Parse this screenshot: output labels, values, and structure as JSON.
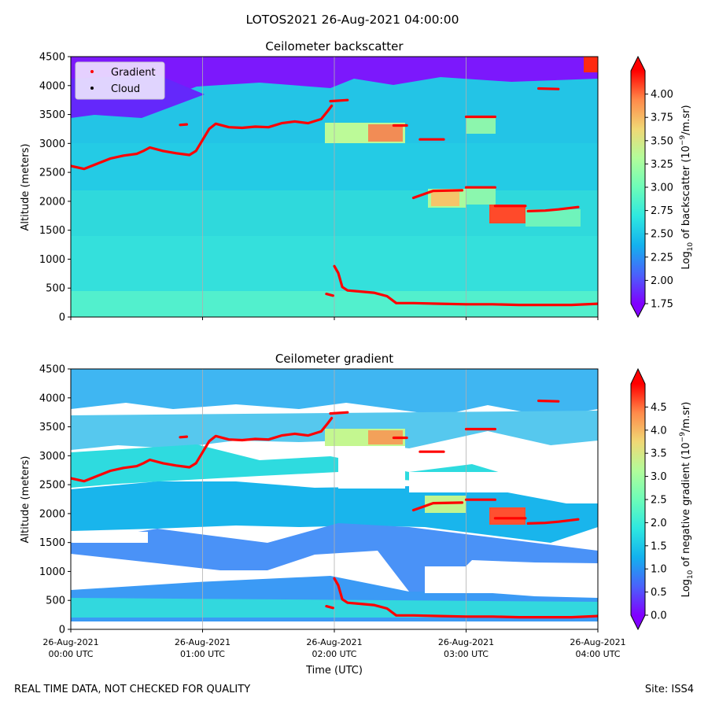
{
  "suptitle": "LOTOS2021 26-Aug-2021 04:00:00",
  "footer_left": "REAL TIME DATA, NOT CHECKED FOR QUALITY",
  "footer_right": "Site: ISS4",
  "xlabel": "Time (UTC)",
  "colormap": [
    "#8000ff",
    "#4a62fb",
    "#13b1ee",
    "#2ee8e0",
    "#6dfcb8",
    "#b2fc9a",
    "#f0d875",
    "#ff8a4a",
    "#ff0000"
  ],
  "chart_data": [
    {
      "type": "heatmap",
      "title": "Ceilometer backscatter",
      "ylabel": "Altitude (meters)",
      "ylim": [
        0,
        4500
      ],
      "yticks": [
        "0",
        "500",
        "1000",
        "1500",
        "2000",
        "2500",
        "3000",
        "3500",
        "4000",
        "4500"
      ],
      "xticks_shown": false,
      "grid": "vertical",
      "colorbar": {
        "label": "Log10 of backscatter (10^-9/m.sr)",
        "range": [
          1.75,
          4.25
        ],
        "ticks": [
          "1.75",
          "2.00",
          "2.25",
          "2.50",
          "2.75",
          "3.00",
          "3.25",
          "3.50",
          "3.75",
          "4.00"
        ]
      },
      "legend": {
        "placement": "upper-left",
        "entries": [
          {
            "label": "Gradient",
            "color": "#ff0000"
          },
          {
            "label": "Cloud",
            "color": "#000000"
          }
        ]
      }
    },
    {
      "type": "heatmap",
      "title": "Ceilometer gradient",
      "ylabel": "Altitude (meters)",
      "ylim": [
        0,
        4500
      ],
      "yticks": [
        "0",
        "500",
        "1000",
        "1500",
        "2000",
        "2500",
        "3000",
        "3500",
        "4000",
        "4500"
      ],
      "xticks": [
        {
          "date": "26-Aug-2021",
          "time": "00:00 UTC"
        },
        {
          "date": "26-Aug-2021",
          "time": "01:00 UTC"
        },
        {
          "date": "26-Aug-2021",
          "time": "02:00 UTC"
        },
        {
          "date": "26-Aug-2021",
          "time": "03:00 UTC"
        },
        {
          "date": "26-Aug-2021",
          "time": "04:00 UTC"
        }
      ],
      "grid": "vertical",
      "colorbar": {
        "label": "Log10 of negative gradient (10^-9/m.sr)",
        "range": [
          0.0,
          5.0
        ],
        "ticks": [
          "0.0",
          "0.5",
          "1.0",
          "1.5",
          "2.0",
          "2.5",
          "3.0",
          "3.5",
          "4.0",
          "4.5"
        ]
      }
    }
  ],
  "gradient_series": {
    "name": "Gradient",
    "x_unit": "hours since 00:00 UTC",
    "y_unit": "meters",
    "segments": [
      [
        [
          0.0,
          2610
        ],
        [
          0.1,
          2560
        ],
        [
          0.2,
          2650
        ],
        [
          0.3,
          2740
        ],
        [
          0.4,
          2790
        ],
        [
          0.5,
          2820
        ],
        [
          0.55,
          2870
        ],
        [
          0.6,
          2930
        ],
        [
          0.7,
          2870
        ],
        [
          0.8,
          2830
        ],
        [
          0.9,
          2800
        ],
        [
          0.95,
          2870
        ],
        [
          1.0,
          3060
        ],
        [
          1.05,
          3250
        ],
        [
          1.1,
          3340
        ],
        [
          1.2,
          3280
        ],
        [
          1.3,
          3270
        ],
        [
          1.4,
          3290
        ],
        [
          1.5,
          3280
        ],
        [
          1.6,
          3350
        ],
        [
          1.7,
          3380
        ],
        [
          1.8,
          3350
        ],
        [
          1.9,
          3420
        ],
        [
          1.95,
          3560
        ],
        [
          1.98,
          3650
        ]
      ],
      [
        [
          0.83,
          3320
        ],
        [
          0.88,
          3330
        ]
      ],
      [
        [
          1.97,
          3730
        ],
        [
          2.1,
          3750
        ]
      ],
      [
        [
          2.0,
          880
        ],
        [
          2.03,
          760
        ],
        [
          2.06,
          520
        ],
        [
          2.1,
          460
        ],
        [
          2.2,
          440
        ],
        [
          2.3,
          420
        ],
        [
          2.4,
          360
        ],
        [
          2.47,
          240
        ],
        [
          2.6,
          240
        ],
        [
          2.8,
          230
        ],
        [
          3.0,
          220
        ],
        [
          3.2,
          220
        ],
        [
          3.4,
          210
        ],
        [
          3.6,
          210
        ],
        [
          3.8,
          210
        ],
        [
          4.0,
          230
        ]
      ],
      [
        [
          1.94,
          400
        ],
        [
          1.99,
          370
        ]
      ],
      [
        [
          2.45,
          3310
        ],
        [
          2.55,
          3310
        ]
      ],
      [
        [
          2.65,
          3070
        ],
        [
          2.83,
          3070
        ]
      ],
      [
        [
          2.6,
          2060
        ],
        [
          2.75,
          2180
        ],
        [
          2.97,
          2190
        ]
      ],
      [
        [
          3.0,
          2240
        ],
        [
          3.22,
          2240
        ]
      ],
      [
        [
          3.0,
          3460
        ],
        [
          3.22,
          3460
        ]
      ],
      [
        [
          3.22,
          1920
        ],
        [
          3.45,
          1920
        ]
      ],
      [
        [
          3.47,
          1830
        ],
        [
          3.6,
          1840
        ],
        [
          3.7,
          1860
        ],
        [
          3.85,
          1900
        ]
      ],
      [
        [
          3.55,
          3950
        ],
        [
          3.7,
          3940
        ]
      ]
    ]
  }
}
